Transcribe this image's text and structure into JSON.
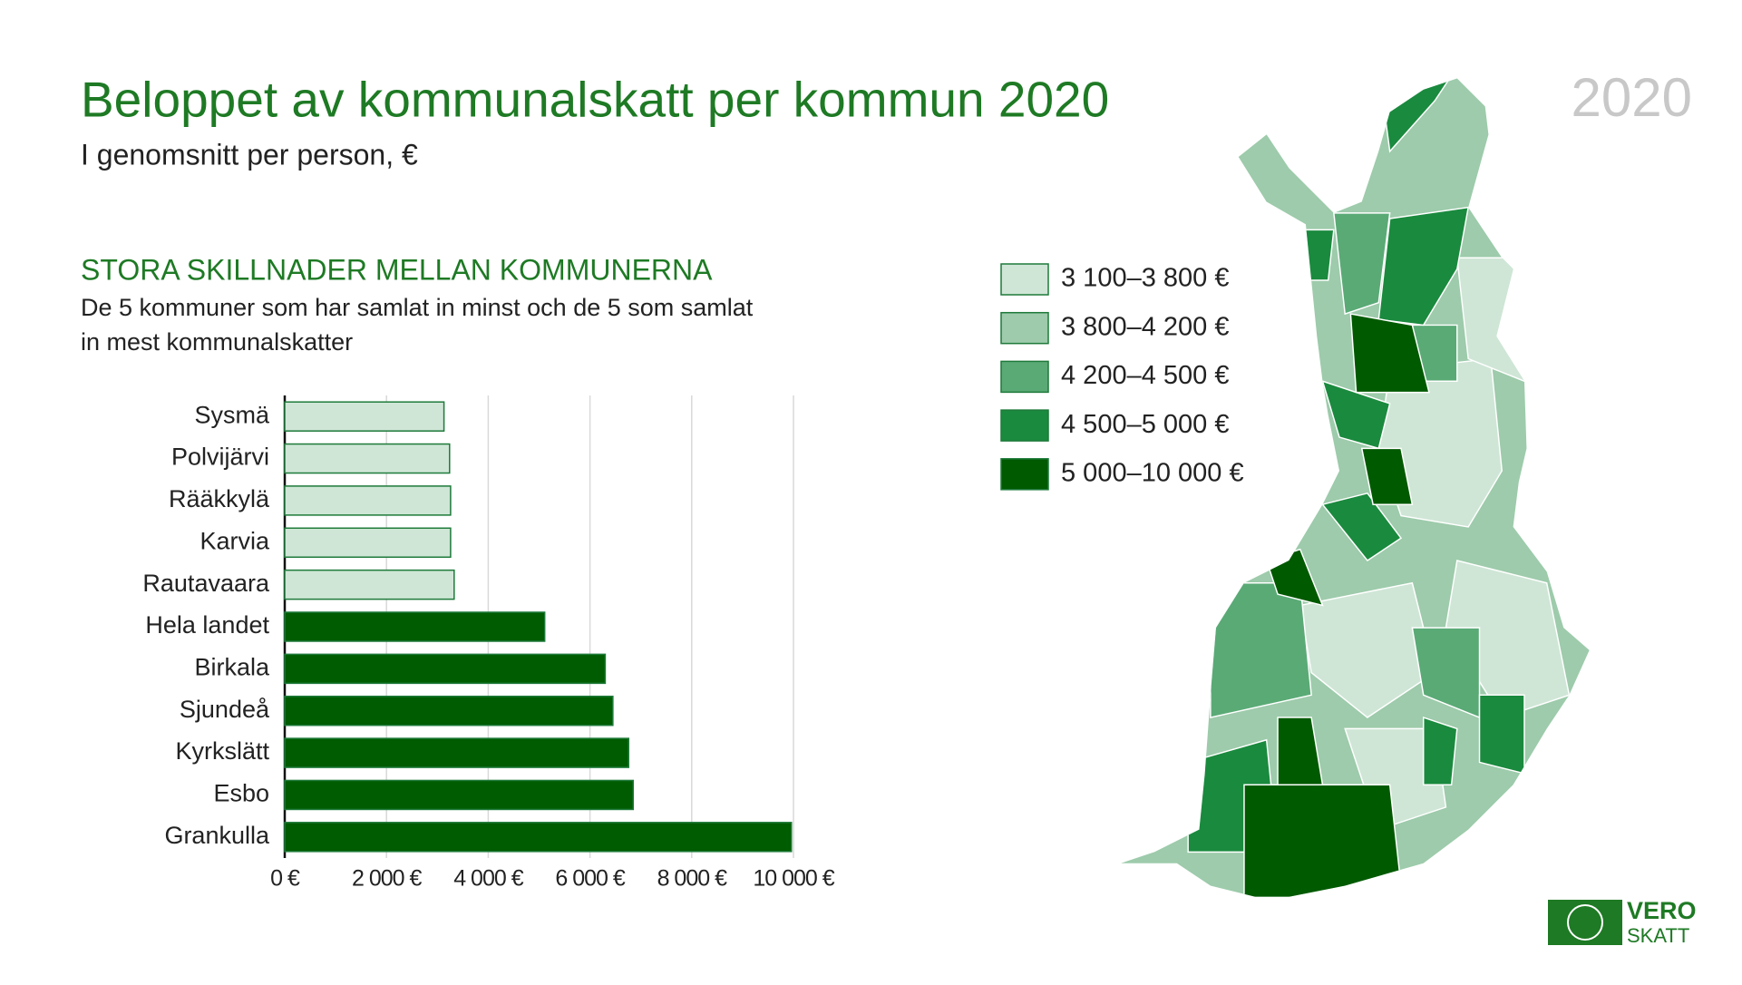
{
  "chart_data": {
    "type": "bar",
    "orientation": "horizontal",
    "title": "Beloppet av kommunalskatt per kommun 2020",
    "subtitle": "I genomsnitt per person, €",
    "heading": "STORA SKILLNADER MELLAN KOMMUNERNA",
    "description": [
      "De 5 kommuner som har samlat in minst och de 5 som samlat",
      "in mest kommunalskatter"
    ],
    "categories": [
      "Sysmä",
      "Polvijärvi",
      "Rääkkylä",
      "Karvia",
      "Rautavaara",
      "Hela landet",
      "Birkala",
      "Sjundeå",
      "Kyrkslätt",
      "Esbo",
      "Grankulla"
    ],
    "values": [
      3130,
      3240,
      3260,
      3260,
      3330,
      5110,
      6300,
      6450,
      6760,
      6850,
      9960
    ],
    "colors": [
      "#cfe6d6",
      "#cfe6d6",
      "#cfe6d6",
      "#cfe6d6",
      "#cfe6d6",
      "#005c00",
      "#005c00",
      "#005c00",
      "#005c00",
      "#005c00",
      "#005c00"
    ],
    "xlim": [
      0,
      10000
    ],
    "xticks": [
      {
        "value": 0,
        "label": "0 €"
      },
      {
        "value": 2000,
        "label": "2 000 €"
      },
      {
        "value": 4000,
        "label": "4 000 €"
      },
      {
        "value": 6000,
        "label": "6 000 €"
      },
      {
        "value": 8000,
        "label": "8 000 €"
      },
      {
        "value": 10000,
        "label": "10 000 €"
      }
    ],
    "grid": true
  },
  "map": {
    "year": "2020",
    "legend": [
      {
        "label": "3 100–3 800 €",
        "color": "#cfe6d6"
      },
      {
        "label": "3 800–4 200 €",
        "color": "#9dcbab"
      },
      {
        "label": "4 200–4 500 €",
        "color": "#5aaa76"
      },
      {
        "label": "4 500–5 000 €",
        "color": "#1a8a3e"
      },
      {
        "label": "5 000–10 000 €",
        "color": "#005a00"
      }
    ]
  },
  "logo": {
    "top": "VERO",
    "bottom": "SKATT"
  }
}
